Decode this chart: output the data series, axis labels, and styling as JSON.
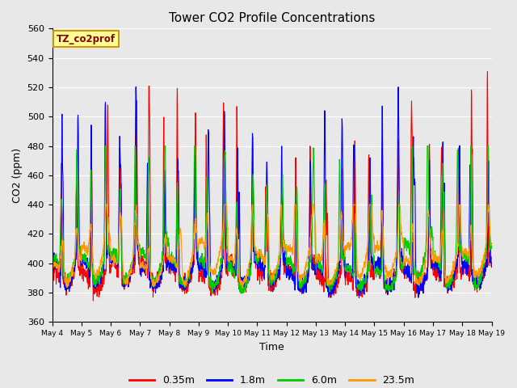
{
  "title": "Tower CO2 Profile Concentrations",
  "xlabel": "Time",
  "ylabel": "CO2 (ppm)",
  "ylim": [
    360,
    560
  ],
  "yticks": [
    360,
    380,
    400,
    420,
    440,
    460,
    480,
    500,
    520,
    540,
    560
  ],
  "date_labels": [
    "May 4",
    "May 5",
    "May 6",
    "May 7",
    "May 8",
    "May 9",
    "May 10",
    "May 11",
    "May 12",
    "May 13",
    "May 14",
    "May 15",
    "May 16",
    "May 17",
    "May 18",
    "May 19"
  ],
  "series_labels": [
    "0.35m",
    "1.8m",
    "6.0m",
    "23.5m"
  ],
  "series_colors": [
    "#ff0000",
    "#0000ff",
    "#00cc00",
    "#ff9900"
  ],
  "line_width": 0.8,
  "bg_color": "#e8e8e8",
  "fig_bg_color": "#e8e8e8",
  "annotation_text": "TZ_co2prof",
  "annotation_bg": "#ffff99",
  "annotation_border": "#cc9900",
  "n_days": 15,
  "n_per_day": 144,
  "base_co2": 383
}
